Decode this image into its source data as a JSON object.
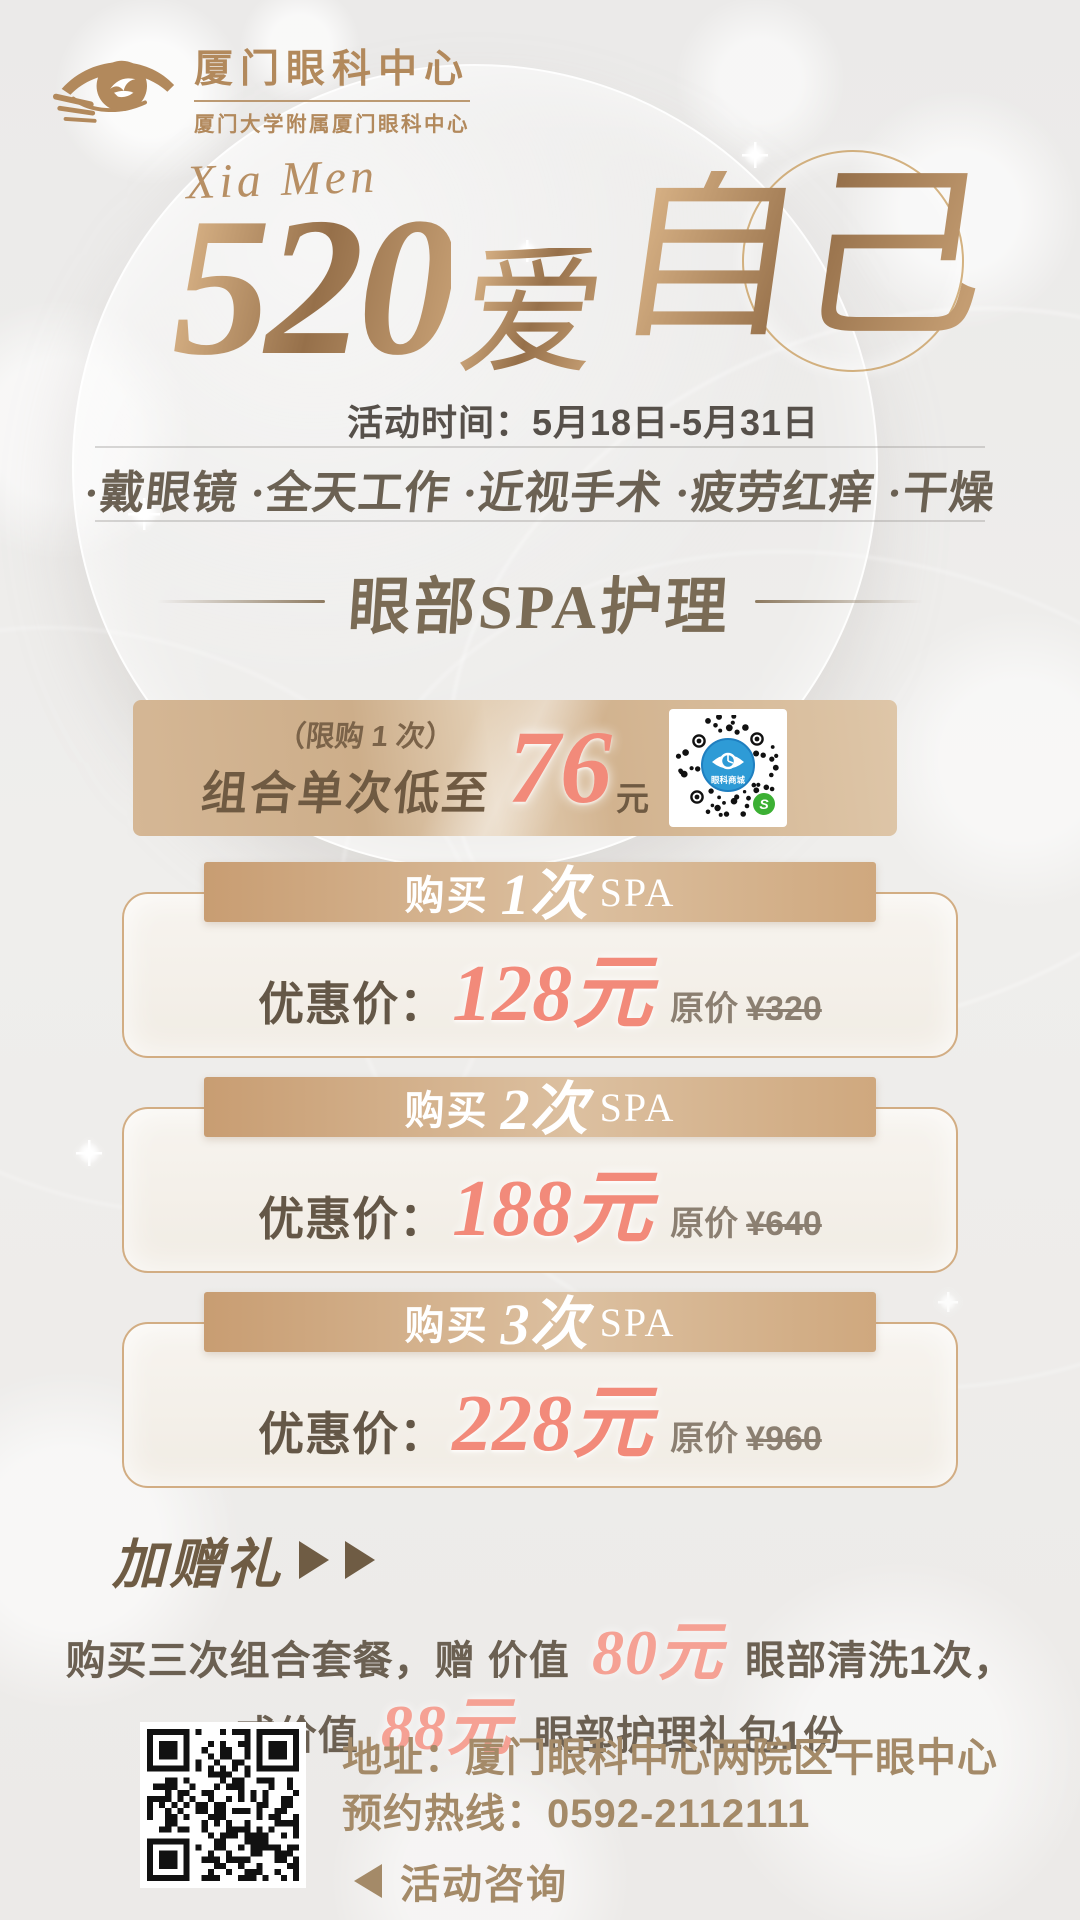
{
  "brand": {
    "name": "厦门眼科中心",
    "subtitle": "厦门大学附属厦门眼科中心"
  },
  "hero": {
    "script": "Xia Men",
    "title_num": "520",
    "title_love": "爱",
    "title_self": "自己",
    "period": "活动时间：5月18日-5月31日",
    "tags": "·戴眼镜 ·全天工作 ·近视手术 ·疲劳红痒 ·干燥"
  },
  "section": {
    "heading": "眼部SPA护理"
  },
  "offer": {
    "limit_note": "（限购 1 次）",
    "label": "组合单次低至",
    "price": "76",
    "unit": "元",
    "qr_caption": "眼科商城"
  },
  "packages": [
    {
      "buy": "购买",
      "count": "1次",
      "spa": "SPA",
      "price_label": "优惠价：",
      "price": "128元",
      "orig_label": "原价",
      "orig_price": "¥320"
    },
    {
      "buy": "购买",
      "count": "2次",
      "spa": "SPA",
      "price_label": "优惠价：",
      "price": "188元",
      "orig_label": "原价",
      "orig_price": "¥640"
    },
    {
      "buy": "购买",
      "count": "3次",
      "spa": "SPA",
      "price_label": "优惠价：",
      "price": "228元",
      "orig_label": "原价",
      "orig_price": "¥960"
    }
  ],
  "gift": {
    "heading": "加赠礼",
    "line1_pre": "购买三次组合套餐，赠 价值",
    "line1_price": "80元",
    "line1_post": "眼部清洗1次，",
    "line2_pre": "或价值",
    "line2_price": "88元",
    "line2_post": "眼部护理礼包1份"
  },
  "footer": {
    "address": "地址：厦门眼科中心两院区干眼中心",
    "hotline": "预约热线：0592-2112111",
    "consult": "活动咨询"
  },
  "colors": {
    "bronze": "#b2895c",
    "bronze-dark": "#8a6644",
    "bronze-light": "#cfa87c",
    "coral": "#f28a7a",
    "tan": "#d7b996",
    "brown": "#6f6150",
    "brown-soft": "#8b7f71",
    "footer-brown": "#a48a68",
    "qr-blue": "#2e9bd6",
    "wechat-green": "#3cb034"
  }
}
